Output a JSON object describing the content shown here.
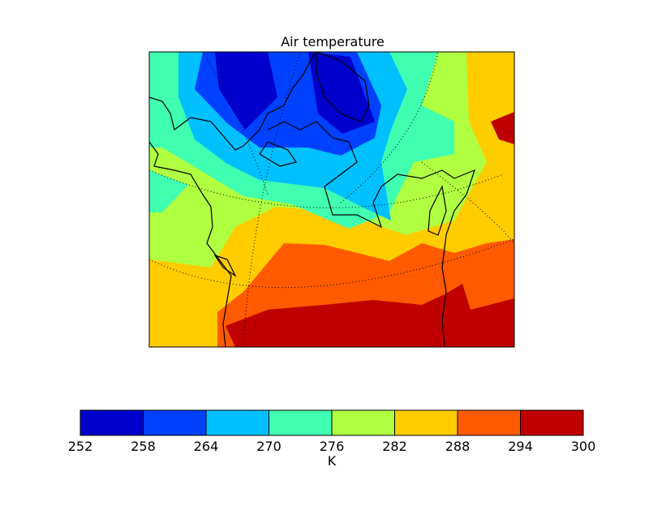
{
  "chart_data": {
    "type": "contourf",
    "title": "Air temperature",
    "colorbar": {
      "label": "K",
      "levels": [
        252,
        258,
        264,
        270,
        276,
        282,
        288,
        294,
        300
      ],
      "colors": [
        "#0000cd",
        "#0040ff",
        "#00c0ff",
        "#40ffb0",
        "#b0ff40",
        "#ffcc00",
        "#ff5a00",
        "#c00000"
      ]
    }
  }
}
